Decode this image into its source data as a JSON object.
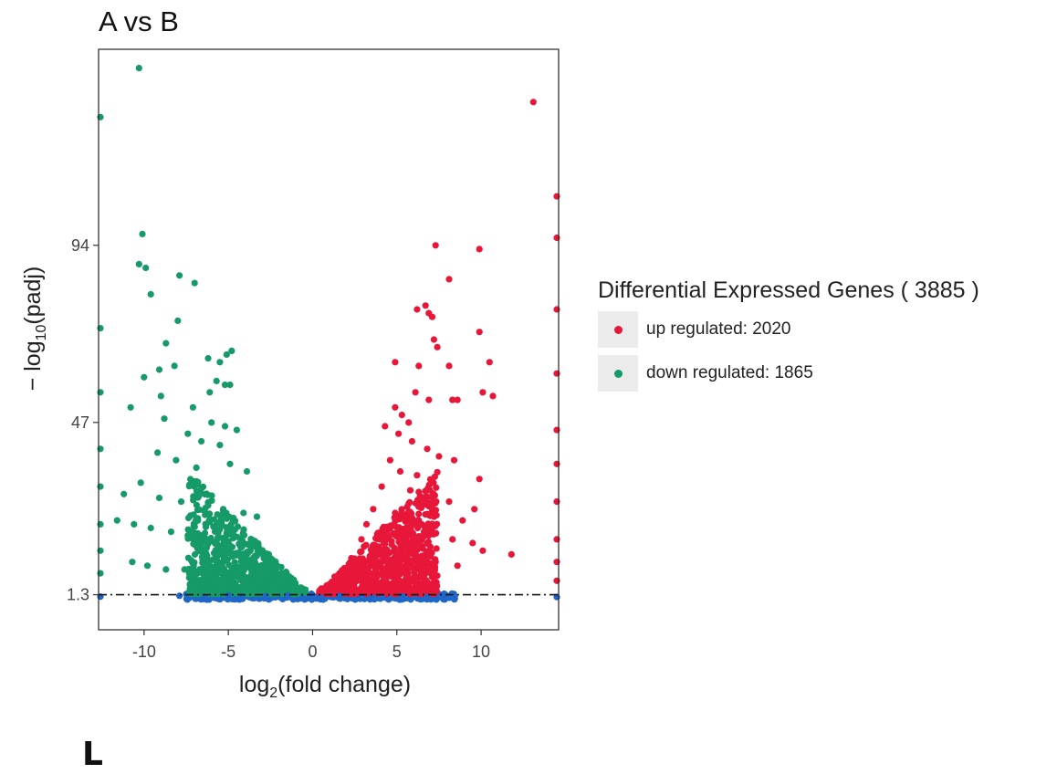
{
  "figure": {
    "title": "A vs B",
    "panel_letter": "L"
  },
  "legend": {
    "title": "Differential Expressed Genes ( 3885 )",
    "items": [
      {
        "label": "up regulated: 2020",
        "color": "#E8173A"
      },
      {
        "label": "down regulated: 1865",
        "color": "#159A68"
      }
    ]
  },
  "chart_data": {
    "type": "scatter",
    "title": "A vs B",
    "xlabel_base": "log",
    "xlabel_sub": "2",
    "xlabel_rest": "(fold change)",
    "ylabel_prefix": "− log",
    "ylabel_sub": "10",
    "ylabel_rest": "(padj)",
    "x_ticks": [
      -10,
      -5,
      0,
      5,
      10
    ],
    "y_ticks": [
      1.3,
      47,
      94
    ],
    "xlim": [
      -12.7,
      14.6
    ],
    "ylim": [
      -8,
      146
    ],
    "threshold_y": 1.3,
    "grid": false,
    "legend_position": "right",
    "colors": {
      "up": "#E8173A",
      "down": "#159A68",
      "ns": "#1E66C8"
    },
    "series": [
      {
        "name": "up regulated: 2020",
        "color": "#E8173A",
        "points": [
          [
            13.1,
            132
          ],
          [
            7.3,
            94
          ],
          [
            9.9,
            93
          ],
          [
            8.1,
            85
          ],
          [
            6.2,
            77
          ],
          [
            6.7,
            78
          ],
          [
            6.9,
            76
          ],
          [
            7.1,
            75
          ],
          [
            9.9,
            71
          ],
          [
            7.2,
            69
          ],
          [
            7.4,
            67
          ],
          [
            10.5,
            63
          ],
          [
            4.9,
            63
          ],
          [
            6.3,
            62
          ],
          [
            8.1,
            62
          ],
          [
            6.1,
            55
          ],
          [
            10.1,
            55
          ],
          [
            10.7,
            54
          ],
          [
            6.9,
            53
          ],
          [
            8.3,
            53
          ],
          [
            8.6,
            53
          ],
          [
            4.9,
            51
          ],
          [
            5.3,
            49
          ],
          [
            5.7,
            47
          ],
          [
            4.3,
            46
          ],
          [
            5.1,
            44
          ],
          [
            5.9,
            42
          ],
          [
            6.8,
            40
          ],
          [
            7.5,
            38
          ],
          [
            4.6,
            37
          ],
          [
            8.4,
            37
          ],
          [
            5.2,
            34
          ],
          [
            6.2,
            33
          ],
          [
            7.1,
            31
          ],
          [
            9.9,
            32
          ],
          [
            4.1,
            30
          ],
          [
            5.8,
            29
          ],
          [
            6.7,
            27
          ],
          [
            8.1,
            26
          ],
          [
            9.6,
            24
          ],
          [
            3.6,
            24
          ],
          [
            4.9,
            23
          ],
          [
            7.2,
            22
          ],
          [
            8.9,
            21
          ],
          [
            11.8,
            12
          ],
          [
            3.2,
            20
          ],
          [
            4.3,
            19
          ],
          [
            5.6,
            18
          ],
          [
            6.9,
            17
          ],
          [
            8.3,
            16
          ],
          [
            9.5,
            15
          ],
          [
            10.1,
            13
          ],
          [
            2.9,
            16
          ],
          [
            3.7,
            14
          ],
          [
            4.4,
            13
          ],
          [
            5.2,
            12
          ],
          [
            6.1,
            11
          ],
          [
            7.3,
            10
          ],
          [
            8.6,
            9
          ],
          [
            2.3,
            11
          ],
          [
            2.9,
            10
          ],
          [
            3.5,
            9
          ],
          [
            4.2,
            8
          ],
          [
            4.9,
            8
          ],
          [
            5.6,
            7
          ],
          [
            6.4,
            6
          ],
          [
            7.1,
            6
          ],
          [
            1.6,
            7
          ],
          [
            2.1,
            6
          ],
          [
            2.6,
            5
          ],
          [
            3.2,
            5
          ],
          [
            3.8,
            4
          ],
          [
            4.5,
            4
          ],
          [
            5.2,
            4
          ],
          [
            6.0,
            3
          ],
          [
            7.3,
            3
          ],
          [
            1.1,
            4
          ],
          [
            1.5,
            3
          ],
          [
            2.0,
            3
          ],
          [
            2.4,
            2
          ],
          [
            3.0,
            2
          ],
          [
            3.6,
            2
          ],
          [
            14.5,
            107
          ],
          [
            14.5,
            96
          ],
          [
            14.5,
            77
          ],
          [
            14.5,
            60
          ],
          [
            14.5,
            45
          ],
          [
            14.5,
            36
          ],
          [
            14.5,
            26
          ],
          [
            14.5,
            16
          ],
          [
            14.5,
            10
          ],
          [
            14.5,
            5
          ]
        ]
      },
      {
        "name": "down regulated: 1865",
        "color": "#159A68",
        "points": [
          [
            -10.3,
            141
          ],
          [
            -10.1,
            97
          ],
          [
            -10.3,
            89
          ],
          [
            -9.9,
            88
          ],
          [
            -7.9,
            86
          ],
          [
            -7.0,
            84
          ],
          [
            -9.6,
            81
          ],
          [
            -8.0,
            74
          ],
          [
            -8.7,
            68
          ],
          [
            -4.8,
            66
          ],
          [
            -5.1,
            65
          ],
          [
            -6.2,
            64
          ],
          [
            -5.5,
            63
          ],
          [
            -8.2,
            62
          ],
          [
            -9.1,
            61
          ],
          [
            -10.0,
            59
          ],
          [
            -5.7,
            58
          ],
          [
            -5.2,
            57
          ],
          [
            -4.9,
            57
          ],
          [
            -6.1,
            55
          ],
          [
            -9.0,
            54
          ],
          [
            -7.1,
            51
          ],
          [
            -10.8,
            51
          ],
          [
            -8.8,
            48
          ],
          [
            -6.0,
            47
          ],
          [
            -5.2,
            46
          ],
          [
            -4.5,
            45
          ],
          [
            -7.4,
            44
          ],
          [
            -6.6,
            42
          ],
          [
            -5.5,
            41
          ],
          [
            -9.2,
            39
          ],
          [
            -8.1,
            37
          ],
          [
            -4.9,
            36
          ],
          [
            -6.9,
            35
          ],
          [
            -3.9,
            34
          ],
          [
            -10.2,
            31
          ],
          [
            -11.2,
            28
          ],
          [
            -9.1,
            27
          ],
          [
            -7.8,
            26
          ],
          [
            -6.2,
            25
          ],
          [
            -5.3,
            24
          ],
          [
            -4.1,
            23
          ],
          [
            -3.3,
            22
          ],
          [
            -11.6,
            21
          ],
          [
            -10.6,
            20
          ],
          [
            -9.6,
            19
          ],
          [
            -8.4,
            18
          ],
          [
            -7.4,
            17
          ],
          [
            -6.3,
            16
          ],
          [
            -5.1,
            15
          ],
          [
            -4.2,
            14
          ],
          [
            -3.1,
            13
          ],
          [
            -2.6,
            12
          ],
          [
            -10.7,
            10
          ],
          [
            -9.8,
            9
          ],
          [
            -8.7,
            8
          ],
          [
            -7.6,
            8
          ],
          [
            -6.8,
            7
          ],
          [
            -5.9,
            7
          ],
          [
            -4.9,
            6
          ],
          [
            -4.0,
            6
          ],
          [
            -3.1,
            6
          ],
          [
            -2.3,
            6
          ],
          [
            -1.8,
            5
          ],
          [
            -7.1,
            4
          ],
          [
            -6.2,
            4
          ],
          [
            -5.5,
            4
          ],
          [
            -4.7,
            4
          ],
          [
            -3.8,
            3
          ],
          [
            -3.0,
            3
          ],
          [
            -2.4,
            3
          ],
          [
            -1.6,
            3
          ],
          [
            -1.1,
            2
          ],
          [
            -12.7,
            128
          ],
          [
            -12.7,
            72
          ],
          [
            -12.7,
            55
          ],
          [
            -12.7,
            40
          ],
          [
            -12.7,
            30
          ],
          [
            -12.7,
            20
          ],
          [
            -12.7,
            13
          ],
          [
            -12.7,
            7
          ]
        ]
      },
      {
        "name": "",
        "color": "#1E66C8",
        "points": [
          [
            -7.9,
            1.0
          ],
          [
            -6.4,
            0.6
          ],
          [
            -4.2,
            0.7
          ],
          [
            -2.8,
            0.9
          ],
          [
            -1.5,
            1.1
          ],
          [
            -0.6,
            0.4
          ],
          [
            0.0,
            0.2
          ],
          [
            0.5,
            0.5
          ],
          [
            1.6,
            1.0
          ],
          [
            2.9,
            0.8
          ],
          [
            4.1,
            0.6
          ],
          [
            5.3,
            0.9
          ],
          [
            6.8,
            0.7
          ],
          [
            8.4,
            0.5
          ],
          [
            -5.0,
            1.1
          ],
          [
            3.6,
            1.1
          ],
          [
            -12.7,
            0.8
          ],
          [
            14.5,
            0.7
          ]
        ]
      }
    ]
  }
}
